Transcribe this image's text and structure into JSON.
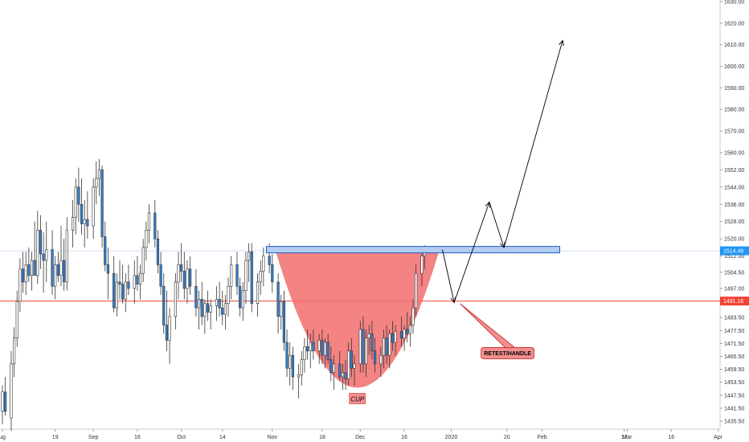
{
  "chart_data": {
    "type": "candlestick",
    "title": "",
    "y_axis_position": "right",
    "ylim": [
      1431.5,
      1632
    ],
    "y_ticks": [
      1435.5,
      1441.5,
      1447.5,
      1453.5,
      1459.5,
      1465.5,
      1471.5,
      1477.5,
      1483.5,
      1491.5,
      1497.0,
      1504.5,
      1512.0,
      1520.0,
      1528.0,
      1536.0,
      1544.0,
      1552.0,
      1560.0,
      1570.0,
      1580.0,
      1590.0,
      1600.0,
      1610.0,
      1620.0,
      1630.0
    ],
    "y_tick_labels": [
      "1435.50",
      "1441.50",
      "1447.50",
      "1453.50",
      "1459.50",
      "1465.50",
      "1471.50",
      "1477.50",
      "1483.50",
      "1491.50",
      "1497.00",
      "1504.50",
      "1512.00",
      "1520.00",
      "1528.00",
      "1536.00",
      "1544.00",
      "1552.00",
      "1560.00",
      "1570.00",
      "1580.00",
      "1590.00",
      "1600.00",
      "1610.00",
      "1620.00",
      "1630.00"
    ],
    "x_tick_labels": [
      {
        "label": "ug",
        "day": 0
      },
      {
        "label": "19",
        "day": 18
      },
      {
        "label": "Sep",
        "day": 31
      },
      {
        "label": "16",
        "day": 46
      },
      {
        "label": "Oct",
        "day": 61
      },
      {
        "label": "14",
        "day": 75
      },
      {
        "label": "Nov",
        "day": 92
      },
      {
        "label": "18",
        "day": 109
      },
      {
        "label": "Dec",
        "day": 122
      },
      {
        "label": "16",
        "day": 137
      },
      {
        "label": "2020",
        "day": 153
      },
      {
        "label": "20",
        "day": 172
      },
      {
        "label": "Feb",
        "day": 184
      },
      {
        "label": "17",
        "day": 212
      },
      {
        "label": "Mar",
        "day": 213
      },
      {
        "label": "16",
        "day": 228
      },
      {
        "label": "Apr",
        "day": 244
      }
    ],
    "x_range_days": [
      0,
      244
    ],
    "candles": [
      {
        "d": 0,
        "o": 1440.0,
        "h": 1452.0,
        "l": 1434.0,
        "c": 1449.0
      },
      {
        "d": 1,
        "o": 1449.0,
        "h": 1456.0,
        "l": 1438.0,
        "c": 1440.0
      },
      {
        "d": 3,
        "o": 1437.0,
        "h": 1468.0,
        "l": 1431.0,
        "c": 1462.0
      },
      {
        "d": 4,
        "o": 1462.0,
        "h": 1479.0,
        "l": 1456.0,
        "c": 1474.0
      },
      {
        "d": 5,
        "o": 1474.0,
        "h": 1496.0,
        "l": 1470.0,
        "c": 1491.0
      },
      {
        "d": 6,
        "o": 1491.0,
        "h": 1511.0,
        "l": 1486.0,
        "c": 1506.0
      },
      {
        "d": 7,
        "o": 1506.0,
        "h": 1514.0,
        "l": 1495.0,
        "c": 1500.0
      },
      {
        "d": 8,
        "o": 1500.0,
        "h": 1514.0,
        "l": 1494.0,
        "c": 1508.0
      },
      {
        "d": 9,
        "o": 1508.0,
        "h": 1516.0,
        "l": 1500.0,
        "c": 1503.0
      },
      {
        "d": 10,
        "o": 1503.0,
        "h": 1514.0,
        "l": 1496.0,
        "c": 1510.0
      },
      {
        "d": 11,
        "o": 1510.0,
        "h": 1528.0,
        "l": 1504.0,
        "c": 1503.0
      },
      {
        "d": 12,
        "o": 1503.0,
        "h": 1533.0,
        "l": 1499.0,
        "c": 1524.0
      },
      {
        "d": 13,
        "o": 1524.0,
        "h": 1531.0,
        "l": 1506.0,
        "c": 1513.0
      },
      {
        "d": 14,
        "o": 1513.0,
        "h": 1523.0,
        "l": 1495.0,
        "c": 1510.0
      },
      {
        "d": 15,
        "o": 1510.0,
        "h": 1528.0,
        "l": 1500.0,
        "c": 1515.0
      },
      {
        "d": 17,
        "o": 1515.0,
        "h": 1524.0,
        "l": 1494.0,
        "c": 1498.0
      },
      {
        "d": 18,
        "o": 1498.0,
        "h": 1512.0,
        "l": 1492.0,
        "c": 1508.0
      },
      {
        "d": 19,
        "o": 1508.0,
        "h": 1514.0,
        "l": 1500.0,
        "c": 1503.0
      },
      {
        "d": 20,
        "o": 1503.0,
        "h": 1526.0,
        "l": 1498.0,
        "c": 1510.0
      },
      {
        "d": 21,
        "o": 1510.0,
        "h": 1520.0,
        "l": 1496.0,
        "c": 1500.0
      },
      {
        "d": 22,
        "o": 1500.0,
        "h": 1530.0,
        "l": 1496.0,
        "c": 1524.0
      },
      {
        "d": 24,
        "o": 1524.0,
        "h": 1538.0,
        "l": 1516.0,
        "c": 1530.0
      },
      {
        "d": 25,
        "o": 1530.0,
        "h": 1548.0,
        "l": 1522.0,
        "c": 1544.0
      },
      {
        "d": 26,
        "o": 1544.0,
        "h": 1553.0,
        "l": 1528.0,
        "c": 1536.0
      },
      {
        "d": 27,
        "o": 1536.0,
        "h": 1548.0,
        "l": 1522.0,
        "c": 1527.0
      },
      {
        "d": 28,
        "o": 1527.0,
        "h": 1538.0,
        "l": 1516.0,
        "c": 1529.0
      },
      {
        "d": 29,
        "o": 1529.0,
        "h": 1542.0,
        "l": 1520.0,
        "c": 1526.0
      },
      {
        "d": 31,
        "o": 1526.0,
        "h": 1548.0,
        "l": 1520.0,
        "c": 1544.0
      },
      {
        "d": 32,
        "o": 1544.0,
        "h": 1556.0,
        "l": 1536.0,
        "c": 1548.0
      },
      {
        "d": 33,
        "o": 1548.0,
        "h": 1557.0,
        "l": 1540.0,
        "c": 1552.0
      },
      {
        "d": 34,
        "o": 1552.0,
        "h": 1554.0,
        "l": 1516.0,
        "c": 1521.0
      },
      {
        "d": 35,
        "o": 1521.0,
        "h": 1528.0,
        "l": 1505.0,
        "c": 1508.0
      },
      {
        "d": 36,
        "o": 1508.0,
        "h": 1516.0,
        "l": 1492.0,
        "c": 1504.0
      },
      {
        "d": 38,
        "o": 1504.0,
        "h": 1512.0,
        "l": 1486.0,
        "c": 1488.0
      },
      {
        "d": 39,
        "o": 1488.0,
        "h": 1504.0,
        "l": 1484.0,
        "c": 1500.0
      },
      {
        "d": 40,
        "o": 1500.0,
        "h": 1510.0,
        "l": 1492.0,
        "c": 1499.0
      },
      {
        "d": 41,
        "o": 1499.0,
        "h": 1508.0,
        "l": 1490.0,
        "c": 1492.0
      },
      {
        "d": 42,
        "o": 1492.0,
        "h": 1504.0,
        "l": 1486.0,
        "c": 1500.0
      },
      {
        "d": 43,
        "o": 1500.0,
        "h": 1508.0,
        "l": 1494.0,
        "c": 1497.0
      },
      {
        "d": 45,
        "o": 1497.0,
        "h": 1510.0,
        "l": 1490.0,
        "c": 1503.0
      },
      {
        "d": 46,
        "o": 1503.0,
        "h": 1512.0,
        "l": 1496.0,
        "c": 1499.0
      },
      {
        "d": 47,
        "o": 1499.0,
        "h": 1508.0,
        "l": 1492.0,
        "c": 1504.0
      },
      {
        "d": 48,
        "o": 1504.0,
        "h": 1520.0,
        "l": 1500.0,
        "c": 1516.0
      },
      {
        "d": 49,
        "o": 1516.0,
        "h": 1528.0,
        "l": 1510.0,
        "c": 1524.0
      },
      {
        "d": 50,
        "o": 1524.0,
        "h": 1536.0,
        "l": 1518.0,
        "c": 1532.0
      },
      {
        "d": 52,
        "o": 1532.0,
        "h": 1538.0,
        "l": 1516.0,
        "c": 1520.0
      },
      {
        "d": 53,
        "o": 1520.0,
        "h": 1524.0,
        "l": 1504.0,
        "c": 1508.0
      },
      {
        "d": 54,
        "o": 1508.0,
        "h": 1514.0,
        "l": 1494.0,
        "c": 1498.0
      },
      {
        "d": 55,
        "o": 1498.0,
        "h": 1504.0,
        "l": 1476.0,
        "c": 1480.0
      },
      {
        "d": 56,
        "o": 1480.0,
        "h": 1496.0,
        "l": 1468.0,
        "c": 1473.0
      },
      {
        "d": 57,
        "o": 1473.0,
        "h": 1488.0,
        "l": 1462.0,
        "c": 1484.0
      },
      {
        "d": 59,
        "o": 1484.0,
        "h": 1504.0,
        "l": 1478.0,
        "c": 1500.0
      },
      {
        "d": 60,
        "o": 1500.0,
        "h": 1514.0,
        "l": 1492.0,
        "c": 1508.0
      },
      {
        "d": 61,
        "o": 1508.0,
        "h": 1518.0,
        "l": 1500.0,
        "c": 1505.0
      },
      {
        "d": 62,
        "o": 1505.0,
        "h": 1514.0,
        "l": 1492.0,
        "c": 1497.0
      },
      {
        "d": 63,
        "o": 1497.0,
        "h": 1510.0,
        "l": 1490.0,
        "c": 1506.0
      },
      {
        "d": 64,
        "o": 1506.0,
        "h": 1512.0,
        "l": 1494.0,
        "c": 1498.0
      },
      {
        "d": 66,
        "o": 1498.0,
        "h": 1506.0,
        "l": 1484.0,
        "c": 1488.0
      },
      {
        "d": 67,
        "o": 1488.0,
        "h": 1496.0,
        "l": 1478.0,
        "c": 1492.0
      },
      {
        "d": 68,
        "o": 1492.0,
        "h": 1500.0,
        "l": 1480.0,
        "c": 1484.0
      },
      {
        "d": 69,
        "o": 1484.0,
        "h": 1492.0,
        "l": 1476.0,
        "c": 1490.0
      },
      {
        "d": 70,
        "o": 1490.0,
        "h": 1496.0,
        "l": 1482.0,
        "c": 1486.0
      },
      {
        "d": 71,
        "o": 1486.0,
        "h": 1492.0,
        "l": 1478.0,
        "c": 1489.0
      },
      {
        "d": 73,
        "o": 1489.0,
        "h": 1498.0,
        "l": 1482.0,
        "c": 1492.0
      },
      {
        "d": 74,
        "o": 1492.0,
        "h": 1500.0,
        "l": 1484.0,
        "c": 1488.0
      },
      {
        "d": 75,
        "o": 1488.0,
        "h": 1496.0,
        "l": 1480.0,
        "c": 1485.0
      },
      {
        "d": 76,
        "o": 1485.0,
        "h": 1494.0,
        "l": 1478.0,
        "c": 1490.0
      },
      {
        "d": 77,
        "o": 1490.0,
        "h": 1502.0,
        "l": 1484.0,
        "c": 1498.0
      },
      {
        "d": 78,
        "o": 1498.0,
        "h": 1512.0,
        "l": 1492.0,
        "c": 1508.0
      },
      {
        "d": 80,
        "o": 1508.0,
        "h": 1514.0,
        "l": 1494.0,
        "c": 1498.0
      },
      {
        "d": 81,
        "o": 1498.0,
        "h": 1502.0,
        "l": 1484.0,
        "c": 1488.0
      },
      {
        "d": 82,
        "o": 1488.0,
        "h": 1500.0,
        "l": 1482.0,
        "c": 1496.0
      },
      {
        "d": 83,
        "o": 1496.0,
        "h": 1514.0,
        "l": 1490.0,
        "c": 1510.0
      },
      {
        "d": 84,
        "o": 1510.0,
        "h": 1518.0,
        "l": 1500.0,
        "c": 1514.0
      },
      {
        "d": 85,
        "o": 1514.0,
        "h": 1518.0,
        "l": 1486.0,
        "c": 1490.0
      },
      {
        "d": 87,
        "o": 1490.0,
        "h": 1504.0,
        "l": 1484.0,
        "c": 1500.0
      },
      {
        "d": 88,
        "o": 1500.0,
        "h": 1510.0,
        "l": 1494.0,
        "c": 1505.0
      },
      {
        "d": 89,
        "o": 1505.0,
        "h": 1516.0,
        "l": 1498.0,
        "c": 1512.0
      },
      {
        "d": 91,
        "o": 1512.0,
        "h": 1518.0,
        "l": 1504.0,
        "c": 1508.0
      },
      {
        "d": 92,
        "o": 1508.0,
        "h": 1513.0,
        "l": 1495.0,
        "c": 1500.0
      },
      {
        "d": 94,
        "o": 1500.0,
        "h": 1504.0,
        "l": 1476.0,
        "c": 1484.0
      },
      {
        "d": 95,
        "o": 1484.0,
        "h": 1494.0,
        "l": 1478.0,
        "c": 1491.0
      },
      {
        "d": 96,
        "o": 1491.0,
        "h": 1496.0,
        "l": 1468.0,
        "c": 1472.0
      },
      {
        "d": 97,
        "o": 1472.0,
        "h": 1478.0,
        "l": 1456.0,
        "c": 1460.0
      },
      {
        "d": 98,
        "o": 1460.0,
        "h": 1472.0,
        "l": 1452.0,
        "c": 1466.0
      },
      {
        "d": 99,
        "o": 1466.0,
        "h": 1470.0,
        "l": 1450.0,
        "c": 1456.0
      },
      {
        "d": 101,
        "o": 1456.0,
        "h": 1462.0,
        "l": 1446.0,
        "c": 1457.0
      },
      {
        "d": 102,
        "o": 1457.0,
        "h": 1468.0,
        "l": 1452.0,
        "c": 1464.0
      },
      {
        "d": 103,
        "o": 1464.0,
        "h": 1474.0,
        "l": 1458.0,
        "c": 1470.0
      },
      {
        "d": 104,
        "o": 1470.0,
        "h": 1478.0,
        "l": 1464.0,
        "c": 1468.0
      },
      {
        "d": 105,
        "o": 1468.0,
        "h": 1476.0,
        "l": 1460.0,
        "c": 1472.0
      },
      {
        "d": 106,
        "o": 1472.0,
        "h": 1478.0,
        "l": 1464.0,
        "c": 1468.0
      },
      {
        "d": 108,
        "o": 1468.0,
        "h": 1476.0,
        "l": 1462.0,
        "c": 1473.0
      },
      {
        "d": 109,
        "o": 1473.0,
        "h": 1478.0,
        "l": 1462.0,
        "c": 1466.0
      },
      {
        "d": 110,
        "o": 1466.0,
        "h": 1474.0,
        "l": 1460.0,
        "c": 1472.0
      },
      {
        "d": 111,
        "o": 1472.0,
        "h": 1476.0,
        "l": 1462.0,
        "c": 1464.0
      },
      {
        "d": 112,
        "o": 1464.0,
        "h": 1470.0,
        "l": 1454.0,
        "c": 1458.0
      },
      {
        "d": 113,
        "o": 1458.0,
        "h": 1466.0,
        "l": 1450.0,
        "c": 1462.0
      },
      {
        "d": 115,
        "o": 1462.0,
        "h": 1468.0,
        "l": 1454.0,
        "c": 1456.0
      },
      {
        "d": 116,
        "o": 1456.0,
        "h": 1462.0,
        "l": 1450.0,
        "c": 1458.0
      },
      {
        "d": 117,
        "o": 1458.0,
        "h": 1464.0,
        "l": 1450.0,
        "c": 1455.0
      },
      {
        "d": 118,
        "o": 1455.0,
        "h": 1472.0,
        "l": 1452.0,
        "c": 1468.0
      },
      {
        "d": 119,
        "o": 1468.0,
        "h": 1474.0,
        "l": 1456.0,
        "c": 1460.0
      },
      {
        "d": 120,
        "o": 1460.0,
        "h": 1466.0,
        "l": 1452.0,
        "c": 1462.0
      },
      {
        "d": 122,
        "o": 1462.0,
        "h": 1482.0,
        "l": 1458.0,
        "c": 1478.0
      },
      {
        "d": 123,
        "o": 1478.0,
        "h": 1484.0,
        "l": 1458.0,
        "c": 1462.0
      },
      {
        "d": 124,
        "o": 1462.0,
        "h": 1478.0,
        "l": 1456.0,
        "c": 1474.0
      },
      {
        "d": 125,
        "o": 1474.0,
        "h": 1480.0,
        "l": 1466.0,
        "c": 1476.0
      },
      {
        "d": 126,
        "o": 1476.0,
        "h": 1482.0,
        "l": 1464.0,
        "c": 1468.0
      },
      {
        "d": 127,
        "o": 1468.0,
        "h": 1474.0,
        "l": 1458.0,
        "c": 1462.0
      },
      {
        "d": 129,
        "o": 1462.0,
        "h": 1470.0,
        "l": 1456.0,
        "c": 1466.0
      },
      {
        "d": 130,
        "o": 1466.0,
        "h": 1478.0,
        "l": 1460.0,
        "c": 1474.0
      },
      {
        "d": 131,
        "o": 1474.0,
        "h": 1480.0,
        "l": 1462.0,
        "c": 1466.0
      },
      {
        "d": 132,
        "o": 1466.0,
        "h": 1478.0,
        "l": 1460.0,
        "c": 1476.0
      },
      {
        "d": 133,
        "o": 1476.0,
        "h": 1482.0,
        "l": 1468.0,
        "c": 1472.0
      },
      {
        "d": 134,
        "o": 1472.0,
        "h": 1480.0,
        "l": 1466.0,
        "c": 1477.0
      },
      {
        "d": 136,
        "o": 1477.0,
        "h": 1484.0,
        "l": 1470.0,
        "c": 1474.0
      },
      {
        "d": 137,
        "o": 1474.0,
        "h": 1480.0,
        "l": 1468.0,
        "c": 1478.0
      },
      {
        "d": 138,
        "o": 1478.0,
        "h": 1486.0,
        "l": 1472.0,
        "c": 1476.0
      },
      {
        "d": 139,
        "o": 1476.0,
        "h": 1484.0,
        "l": 1470.0,
        "c": 1480.0
      },
      {
        "d": 140,
        "o": 1480.0,
        "h": 1492.0,
        "l": 1476.0,
        "c": 1488.0
      },
      {
        "d": 141,
        "o": 1488.0,
        "h": 1508.0,
        "l": 1484.0,
        "c": 1504.0
      },
      {
        "d": 143,
        "o": 1504.0,
        "h": 1516.0,
        "l": 1498.0,
        "c": 1512.0
      },
      {
        "d": 144,
        "o": 1512.0,
        "h": 1517.0,
        "l": 1506.0,
        "c": 1514.5
      }
    ],
    "horizontal_lines": [
      {
        "name": "resistance-line",
        "y": 1514.46,
        "color": "#cfe0f5"
      },
      {
        "name": "support-line",
        "y": 1491.16,
        "color": "#f44336"
      }
    ],
    "price_badges": [
      {
        "y": 1514.46,
        "label": "1514.46",
        "color": "#2196f3"
      },
      {
        "y": 1491.16,
        "label": "1491.16",
        "color": "#f44336"
      }
    ],
    "annotations": [
      {
        "type": "rectangle",
        "name": "resistance-zone",
        "x1": 90,
        "x2": 190,
        "y1": 1513.5,
        "y2": 1516.5,
        "fill": "#b3cdf0",
        "stroke": "#1e5bc6"
      },
      {
        "type": "cup",
        "name": "cup-shape",
        "x1": 93,
        "x2": 149,
        "top": 1515.0,
        "bottom": 1451.0,
        "fill": "#f26d6d"
      },
      {
        "type": "label",
        "name": "cup-label",
        "text": "CUP",
        "x": 121,
        "y": 1448.0,
        "fill": "#f28f8f",
        "stroke": "#e05050"
      },
      {
        "type": "callout",
        "name": "retest-handle-callout",
        "text": "RETEST/HANDLE",
        "x": 164,
        "y": 1467.0,
        "pointer_x": 156,
        "pointer_y": 1490.0,
        "fill": "#f28f8f",
        "stroke": "#c62828"
      },
      {
        "type": "path",
        "name": "projection-path",
        "points": [
          [
            150,
            1515
          ],
          [
            154,
            1490.5
          ],
          [
            166,
            1537
          ],
          [
            171,
            1516
          ],
          [
            191,
            1612
          ]
        ],
        "stroke": "#000000"
      }
    ],
    "colors": {
      "up": "#ffffff",
      "down": "#2f7fd6",
      "wick": "#333333"
    },
    "grid": false,
    "legend": "none"
  }
}
